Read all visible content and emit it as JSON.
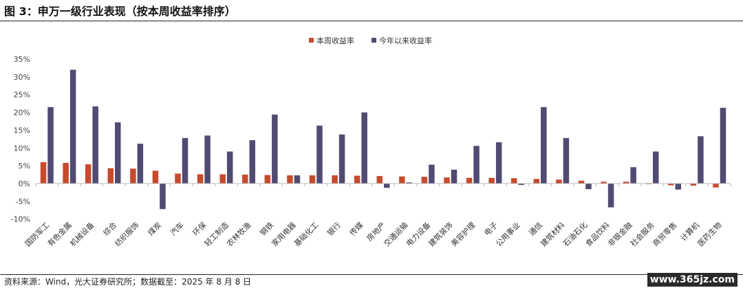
{
  "title": "图 3：申万一级行业表现（按本周收益率排序）",
  "source": "资料来源：Wind，光大证券研究所；数据截至：2025 年 8 月 8 日",
  "watermark": "www.365jz.com",
  "colors": {
    "weekly": "#c84a2c",
    "ytd": "#514a72",
    "axis": "#bbbbbb",
    "text": "#333333"
  },
  "chart_data": {
    "type": "bar",
    "legend_position": "top-center",
    "grid": false,
    "ylim": [
      -10,
      35
    ],
    "yticks": [
      "35%",
      "30%",
      "25%",
      "20%",
      "15%",
      "10%",
      "5%",
      "0%",
      "-5%",
      "-10%"
    ],
    "categories": [
      "国防军工",
      "有色金属",
      "机械设备",
      "综合",
      "纺织服饰",
      "煤炭",
      "汽车",
      "环保",
      "轻工制造",
      "农林牧渔",
      "钢铁",
      "家用电器",
      "基础化工",
      "银行",
      "传媒",
      "房地产",
      "交通运输",
      "电力设备",
      "建筑装饰",
      "美容护理",
      "电子",
      "公用事业",
      "通信",
      "建筑材料",
      "石油石化",
      "食品饮料",
      "非银金融",
      "社会服务",
      "商贸零售",
      "计算机",
      "医药生物"
    ],
    "series": [
      {
        "name": "本周收益率",
        "values": [
          6.0,
          5.8,
          5.4,
          4.3,
          4.2,
          3.6,
          2.8,
          2.6,
          2.6,
          2.5,
          2.4,
          2.3,
          2.3,
          2.3,
          2.2,
          2.1,
          2.0,
          1.9,
          1.7,
          1.6,
          1.6,
          1.5,
          1.3,
          1.1,
          0.8,
          0.5,
          0.5,
          -0.2,
          -0.5,
          -0.6,
          -1.1
        ]
      },
      {
        "name": "今年以来收益率",
        "values": [
          21.5,
          32.0,
          21.7,
          17.2,
          11.2,
          -7.2,
          12.8,
          13.5,
          9.0,
          12.2,
          19.4,
          2.3,
          16.3,
          13.8,
          20.0,
          -1.2,
          0.3,
          5.3,
          3.9,
          10.6,
          11.6,
          -0.4,
          21.5,
          12.8,
          -1.6,
          -6.7,
          4.6,
          9.0,
          -1.7,
          13.3,
          21.3
        ]
      }
    ]
  }
}
